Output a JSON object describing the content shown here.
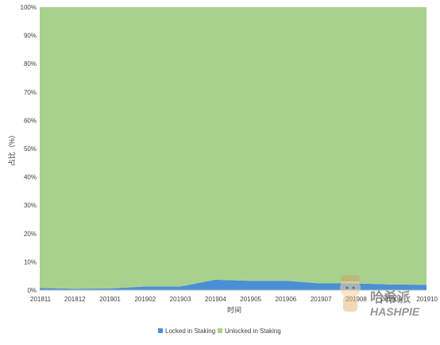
{
  "chart_data": {
    "type": "area",
    "stacked": "percent",
    "title": "",
    "xlabel": "时间",
    "ylabel": "占比（%）",
    "categories": [
      "201811",
      "201812",
      "201901",
      "201902",
      "201903",
      "201904",
      "201905",
      "201906",
      "201907",
      "201908",
      "201909",
      "201910"
    ],
    "yticks": [
      "0%",
      "10%",
      "20%",
      "30%",
      "40%",
      "50%",
      "60%",
      "70%",
      "80%",
      "90%",
      "100%"
    ],
    "ylim": [
      0,
      100
    ],
    "grid": false,
    "legend_position": "bottom",
    "series": [
      {
        "name": "Locked in Staking",
        "color": "#4a8fd6",
        "values": [
          0.8,
          0.5,
          0.6,
          1.3,
          1.3,
          3.7,
          3.3,
          3.3,
          2.4,
          2.4,
          2.0,
          1.9
        ]
      },
      {
        "name": "Unlocked in Staking",
        "color": "#a9d18e",
        "values": [
          99.2,
          99.5,
          99.4,
          98.7,
          98.7,
          96.3,
          96.7,
          96.7,
          97.6,
          97.6,
          98.0,
          98.1
        ]
      }
    ]
  },
  "watermark": {
    "brand_cn": "哈希派",
    "brand_en": "HASHPIE"
  }
}
